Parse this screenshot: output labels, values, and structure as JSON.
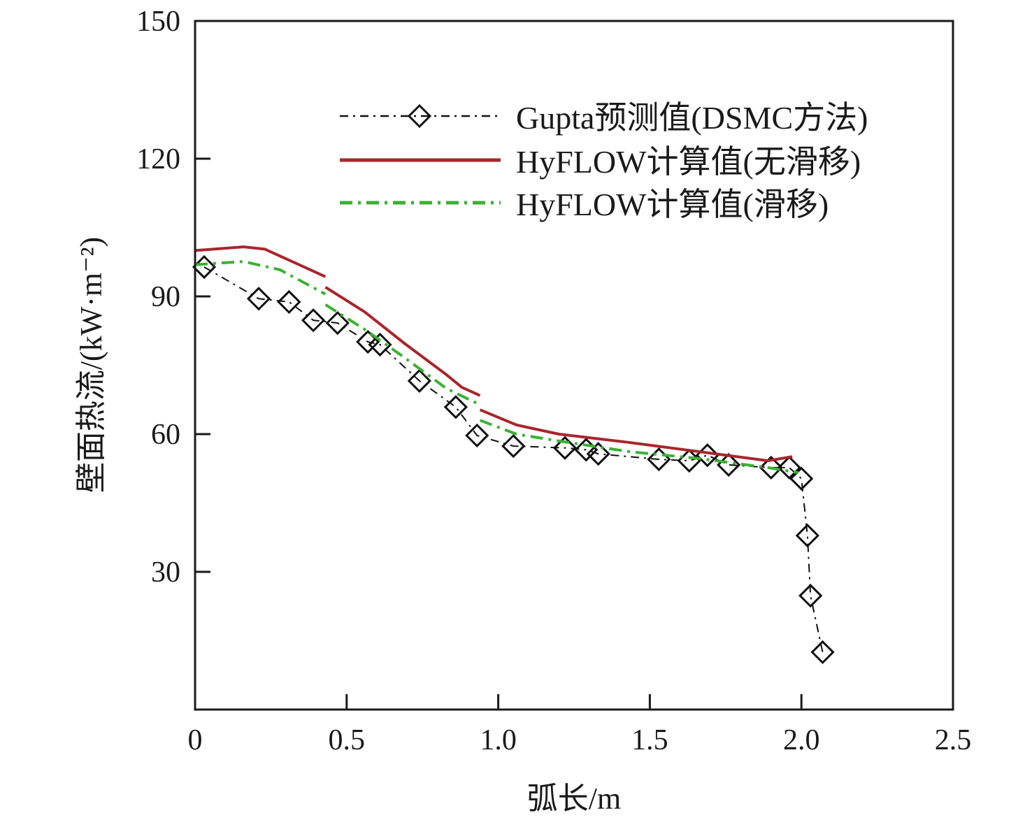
{
  "chart_data": {
    "type": "line",
    "title": "",
    "xlabel": "弧长/m",
    "ylabel": "壁面热流/(kW·m⁻²)",
    "xlim": [
      0,
      2.5
    ],
    "ylim": [
      0,
      150
    ],
    "xticks": [
      0,
      0.5,
      1.0,
      1.5,
      2.0,
      2.5
    ],
    "xtick_labels": [
      "0",
      "0.5",
      "1.0",
      "1.5",
      "2.0",
      "2.5"
    ],
    "yticks": [
      30,
      60,
      90,
      120,
      150
    ],
    "ytick_labels": [
      "30",
      "60",
      "90",
      "120",
      "150"
    ],
    "grid": false,
    "legend_position": "top-right",
    "series": [
      {
        "name": "Gupta预测值(DSMC方法)",
        "color": "#111111",
        "style": "dash-dot-with-diamonds",
        "segments": [
          [
            [
              0.03,
              96.4
            ],
            [
              0.21,
              89.5
            ],
            [
              0.31,
              88.8
            ],
            [
              0.39,
              84.8
            ],
            [
              0.47,
              84.2
            ],
            [
              0.57,
              80.1
            ],
            [
              0.61,
              79.5
            ],
            [
              0.74,
              71.6
            ],
            [
              0.86,
              65.9
            ],
            [
              0.93,
              59.7
            ],
            [
              1.05,
              57.4
            ],
            [
              1.22,
              57.0
            ],
            [
              1.29,
              56.6
            ],
            [
              1.33,
              55.7
            ],
            [
              1.53,
              54.5
            ],
            [
              1.63,
              54.2
            ],
            [
              1.69,
              55.4
            ],
            [
              1.76,
              53.3
            ],
            [
              1.9,
              52.7
            ],
            [
              1.96,
              52.7
            ],
            [
              2.0,
              50.3
            ],
            [
              2.02,
              37.9
            ],
            [
              2.03,
              24.8
            ],
            [
              2.07,
              12.5
            ]
          ]
        ]
      },
      {
        "name": "HyFLOW计算值(无滑移)",
        "color": "#a8262b",
        "style": "solid",
        "segments": [
          [
            [
              0,
              100
            ],
            [
              0.16,
              100.8
            ],
            [
              0.23,
              100.3
            ],
            [
              0.33,
              97.3
            ],
            [
              0.43,
              94.3
            ]
          ],
          [
            [
              0.43,
              92
            ],
            [
              0.56,
              86.6
            ],
            [
              0.69,
              79.8
            ],
            [
              0.83,
              72.9
            ],
            [
              0.88,
              70.2
            ],
            [
              0.94,
              68.4
            ]
          ],
          [
            [
              0.94,
              65.3
            ],
            [
              1.06,
              62
            ],
            [
              1.2,
              60
            ],
            [
              1.43,
              58.2
            ],
            [
              1.66,
              56.2
            ],
            [
              1.89,
              54.2
            ],
            [
              1.97,
              55.1
            ]
          ]
        ]
      },
      {
        "name": "HyFLOW计算值(滑移)",
        "color": "#3cb035",
        "style": "dash-dot",
        "segments": [
          [
            [
              0,
              96.9
            ],
            [
              0.16,
              97.6
            ],
            [
              0.28,
              95.8
            ],
            [
              0.43,
              90.5
            ]
          ],
          [
            [
              0.43,
              88.2
            ],
            [
              0.56,
              82.8
            ],
            [
              0.69,
              76.7
            ],
            [
              0.83,
              69.9
            ],
            [
              0.94,
              66.4
            ]
          ],
          [
            [
              0.94,
              63
            ],
            [
              1.06,
              60
            ],
            [
              1.2,
              58.5
            ],
            [
              1.43,
              56.2
            ],
            [
              1.66,
              54.7
            ],
            [
              1.89,
              52.7
            ],
            [
              1.99,
              51.6
            ]
          ]
        ]
      }
    ]
  }
}
